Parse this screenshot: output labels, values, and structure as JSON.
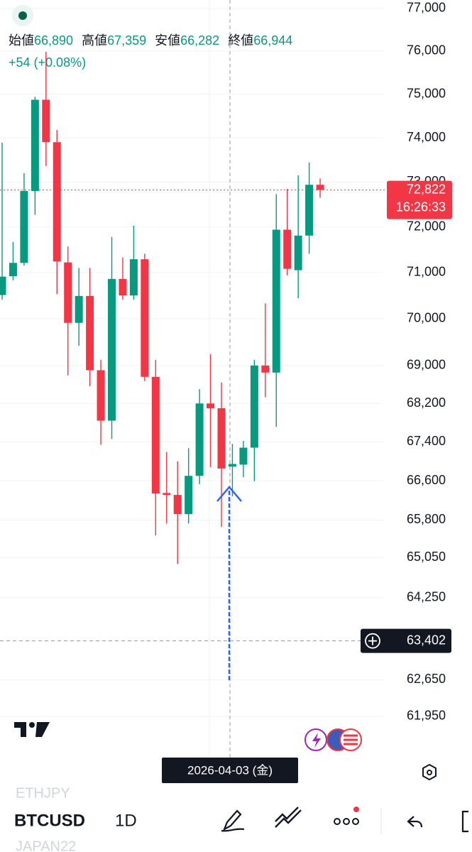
{
  "chart_data": {
    "type": "candlestick",
    "categories": [
      null,
      null,
      null,
      null,
      null,
      null,
      null,
      null,
      null,
      null,
      null,
      null,
      null,
      null,
      null,
      null,
      null,
      null,
      null,
      null,
      null,
      "2026-04-03 (金)",
      null,
      null,
      null,
      null,
      null,
      null,
      null,
      null
    ],
    "open": [
      70510,
      70920,
      71210,
      72800,
      74870,
      73900,
      71220,
      69910,
      70490,
      68900,
      67840,
      70860,
      70500,
      71290,
      68760,
      66350,
      66310,
      65920,
      66700,
      68200,
      68100,
      66890,
      66930,
      67280,
      69000,
      68850,
      71940,
      71050,
      71810,
      72940
    ],
    "high": [
      73890,
      71670,
      73200,
      74940,
      75980,
      74180,
      71570,
      71100,
      71100,
      69120,
      71780,
      71330,
      72030,
      71410,
      69120,
      67190,
      67000,
      67270,
      68500,
      69240,
      68640,
      67359,
      67420,
      69120,
      70330,
      72730,
      72850,
      73150,
      73440,
      73080
    ],
    "low": [
      70410,
      70830,
      71150,
      72270,
      73360,
      70530,
      68790,
      69420,
      68560,
      67340,
      67460,
      70410,
      70410,
      68670,
      65490,
      65730,
      64920,
      65730,
      66530,
      66880,
      65660,
      66282,
      66670,
      66590,
      68330,
      67710,
      70940,
      70440,
      71410,
      72650
    ],
    "close": [
      70910,
      71210,
      72800,
      74870,
      73900,
      71240,
      69910,
      70490,
      68900,
      67840,
      70860,
      70500,
      71290,
      68760,
      66340,
      66310,
      65920,
      66700,
      68200,
      68100,
      66850,
      66944,
      67280,
      69000,
      68850,
      71940,
      71080,
      71810,
      72940,
      72822
    ],
    "up_color": "#089981",
    "down_color": "#f23645",
    "log_scale": true,
    "ylim": [
      61800,
      77200
    ],
    "yticks": [
      {
        "value": 77000,
        "label": "77,000"
      },
      {
        "value": 76000,
        "label": "76,000"
      },
      {
        "value": 75000,
        "label": "75,000"
      },
      {
        "value": 74000,
        "label": "74,000"
      },
      {
        "value": 73000,
        "label": "73,000"
      },
      {
        "value": 72000,
        "label": "72,000"
      },
      {
        "value": 71000,
        "label": "71,000"
      },
      {
        "value": 70000,
        "label": "70,000"
      },
      {
        "value": 69000,
        "label": "69,000"
      },
      {
        "value": 68200,
        "label": "68,200"
      },
      {
        "value": 67400,
        "label": "67,400"
      },
      {
        "value": 66600,
        "label": "66,600"
      },
      {
        "value": 65800,
        "label": "65,800"
      },
      {
        "value": 65050,
        "label": "65,050"
      },
      {
        "value": 64250,
        "label": "64,250"
      },
      {
        "value": 62650,
        "label": "62,650"
      },
      {
        "value": 61950,
        "label": "61,950"
      }
    ],
    "grid": true,
    "last_price": {
      "value": 72822,
      "label": "72,822"
    },
    "countdown": "16:26:33",
    "crosshair_price": {
      "value": 63402,
      "label": "63,402"
    },
    "readout": {
      "labels": [
        "始値",
        "高値",
        "安値",
        "終値"
      ],
      "values": [
        {
          "value": 66890,
          "label": "66,890"
        },
        {
          "value": 67359,
          "label": "67,359"
        },
        {
          "value": 66282,
          "label": "66,282"
        },
        {
          "value": 66944,
          "label": "66,944"
        }
      ],
      "change": "+54 (+0.08%)"
    }
  },
  "toolbar": {
    "prev_symbol": "ETHJPY",
    "symbol": "BTCUSD",
    "interval": "1D",
    "next_symbol": "JAPAN22"
  }
}
